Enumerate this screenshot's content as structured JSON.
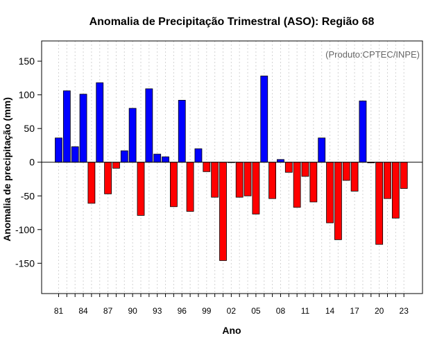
{
  "chart_data": {
    "type": "bar",
    "title": "Anomalia de Precipitação Trimestral (ASO): Região 68",
    "xlabel": "Ano",
    "ylabel": "Anomalia de precipitação (mm)",
    "annotation": "(Produto:CPTEC/INPE)",
    "ylim": [
      -195,
      180
    ],
    "yticks": [
      -150,
      -100,
      -50,
      0,
      50,
      100,
      150
    ],
    "years": [
      1981,
      1982,
      1983,
      1984,
      1985,
      1986,
      1987,
      1988,
      1989,
      1990,
      1991,
      1992,
      1993,
      1994,
      1995,
      1996,
      1997,
      1998,
      1999,
      2000,
      2001,
      2002,
      2003,
      2004,
      2005,
      2006,
      2007,
      2008,
      2009,
      2010,
      2011,
      2012,
      2013,
      2014,
      2015,
      2016,
      2017,
      2018,
      2019,
      2020,
      2021,
      2022,
      2023
    ],
    "values": [
      36,
      106,
      23,
      101,
      -61,
      118,
      -47,
      -9,
      17,
      80,
      -79,
      109,
      12,
      8,
      -66,
      92,
      -73,
      20,
      -14,
      -52,
      -146,
      0,
      -52,
      -50,
      -77,
      128,
      -54,
      4,
      -15,
      -67,
      -21,
      -59,
      36,
      -90,
      -115,
      -27,
      -43,
      91,
      -1,
      -122,
      -54,
      -83,
      -39
    ],
    "xtick_labels": [
      "81",
      "84",
      "87",
      "90",
      "93",
      "96",
      "99",
      "02",
      "05",
      "08",
      "11",
      "14",
      "17",
      "20",
      "23"
    ],
    "xtick_years": [
      1981,
      1984,
      1987,
      1990,
      1993,
      1996,
      1999,
      2002,
      2005,
      2008,
      2011,
      2014,
      2017,
      2020,
      2023
    ],
    "colors": {
      "positive": "#0000ff",
      "negative": "#ff0000",
      "grid": "#d3d3d3",
      "annotation": "#666666"
    }
  }
}
